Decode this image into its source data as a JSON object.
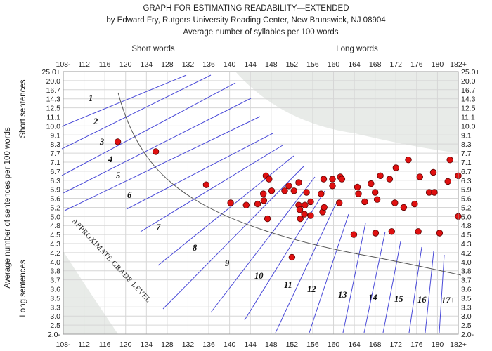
{
  "chart_data": {
    "type": "scatter",
    "title": "GRAPH FOR ESTIMATING READABILITY—EXTENDED",
    "subtitle": "by Edward Fry, Rutgers University Reading Center, New Brunswick, NJ 08904",
    "xlabel": "Average number of syllables per 100 words",
    "ylabel": "Average number of sentences per 100 words",
    "x_group_labels": [
      "Short words",
      "Long words"
    ],
    "y_group_labels": [
      "Short sentences",
      "Long sentences"
    ],
    "x_ticks": [
      "108-",
      "112",
      "116",
      "120",
      "124",
      "128",
      "132",
      "136",
      "140",
      "144",
      "148",
      "152",
      "156",
      "160",
      "164",
      "168",
      "172",
      "176",
      "180",
      "182+"
    ],
    "y_ticks": [
      "25.0+",
      "20.0",
      "16.7",
      "14.3",
      "12.5",
      "11.1",
      "10.0",
      "9.1",
      "8.3",
      "7.7",
      "7.1",
      "6.7",
      "6.3",
      "5.9",
      "5.6",
      "5.2",
      "5.0",
      "4.8",
      "4.5",
      "4.3",
      "4.2",
      "4.0",
      "3.8",
      "3.7",
      "3.6",
      "3.5",
      "3.3",
      "3.0",
      "2.5",
      "2.0-"
    ],
    "grade_labels": [
      "1",
      "2",
      "3",
      "4",
      "5",
      "6",
      "7",
      "8",
      "9",
      "10",
      "11",
      "12",
      "13",
      "14",
      "15",
      "16",
      "17+"
    ],
    "curve_label": "APPROXIMATE GRADE LEVEL",
    "grid": true,
    "points": [
      {
        "x": 118.5,
        "y": 8.5
      },
      {
        "x": 125.8,
        "y": 7.8
      },
      {
        "x": 135.5,
        "y": 6.1
      },
      {
        "x": 140.2,
        "y": 5.4
      },
      {
        "x": 143.2,
        "y": 5.3
      },
      {
        "x": 145.4,
        "y": 5.35
      },
      {
        "x": 146.5,
        "y": 5.75
      },
      {
        "x": 146.6,
        "y": 5.5
      },
      {
        "x": 147.0,
        "y": 6.5
      },
      {
        "x": 147.3,
        "y": 4.95
      },
      {
        "x": 147.6,
        "y": 6.35
      },
      {
        "x": 148.1,
        "y": 5.85
      },
      {
        "x": 150.6,
        "y": 5.85
      },
      {
        "x": 151.4,
        "y": 6.05
      },
      {
        "x": 152.0,
        "y": 4.1
      },
      {
        "x": 152.4,
        "y": 5.85
      },
      {
        "x": 153.3,
        "y": 6.2
      },
      {
        "x": 153.3,
        "y": 5.3
      },
      {
        "x": 153.5,
        "y": 5.15
      },
      {
        "x": 153.6,
        "y": 4.95
      },
      {
        "x": 154.4,
        "y": 5.05
      },
      {
        "x": 154.5,
        "y": 5.3
      },
      {
        "x": 154.8,
        "y": 5.8
      },
      {
        "x": 155.6,
        "y": 5.02
      },
      {
        "x": 155.6,
        "y": 5.45
      },
      {
        "x": 157.6,
        "y": 5.75
      },
      {
        "x": 157.9,
        "y": 5.1
      },
      {
        "x": 158.1,
        "y": 6.35
      },
      {
        "x": 158.2,
        "y": 5.2
      },
      {
        "x": 159.8,
        "y": 6.35
      },
      {
        "x": 159.8,
        "y": 6.05
      },
      {
        "x": 161.1,
        "y": 5.4
      },
      {
        "x": 161.3,
        "y": 6.45
      },
      {
        "x": 161.6,
        "y": 6.35
      },
      {
        "x": 163.9,
        "y": 4.5
      },
      {
        "x": 164.6,
        "y": 6.0
      },
      {
        "x": 164.8,
        "y": 5.75
      },
      {
        "x": 166.0,
        "y": 5.45
      },
      {
        "x": 167.2,
        "y": 6.15
      },
      {
        "x": 168.0,
        "y": 5.8
      },
      {
        "x": 168.1,
        "y": 4.55
      },
      {
        "x": 168.4,
        "y": 5.55
      },
      {
        "x": 169.0,
        "y": 6.5
      },
      {
        "x": 170.8,
        "y": 6.35
      },
      {
        "x": 171.2,
        "y": 4.6
      },
      {
        "x": 171.8,
        "y": 5.4
      },
      {
        "x": 172.0,
        "y": 6.85
      },
      {
        "x": 173.5,
        "y": 5.2
      },
      {
        "x": 174.4,
        "y": 7.25
      },
      {
        "x": 175.6,
        "y": 5.35
      },
      {
        "x": 176.3,
        "y": 4.6
      },
      {
        "x": 176.6,
        "y": 6.45
      },
      {
        "x": 178.4,
        "y": 5.8
      },
      {
        "x": 179.2,
        "y": 6.65
      },
      {
        "x": 179.4,
        "y": 5.8
      },
      {
        "x": 180.2,
        "y": 4.55
      },
      {
        "x": 181.0,
        "y": 6.25
      },
      {
        "x": 181.2,
        "y": 7.25
      },
      {
        "x": 182.0,
        "y": 6.5
      },
      {
        "x": 182.0,
        "y": 5.0
      }
    ],
    "colors": {
      "points": "#e01010",
      "point_edge": "#5a0000",
      "lines": "#4a4ad8",
      "curve": "#555555",
      "shade": "#e8ebe8",
      "grid": "#d6d6d6"
    }
  }
}
